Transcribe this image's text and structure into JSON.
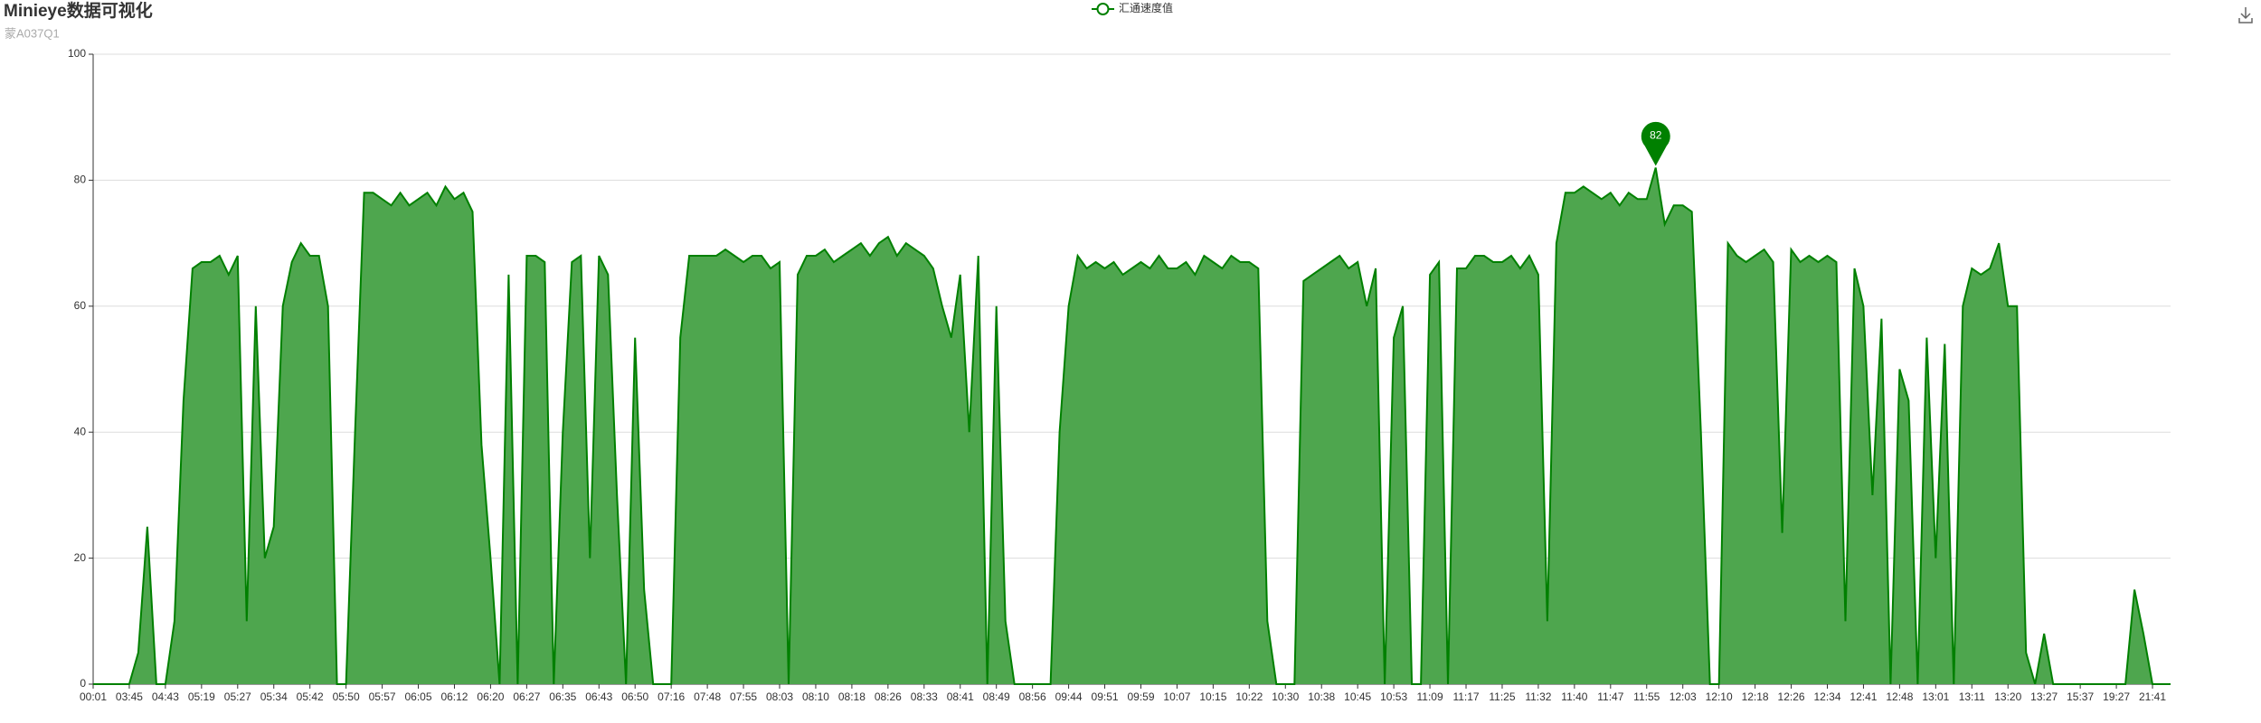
{
  "chart_data": {
    "type": "area",
    "title": "Minieye数据可视化",
    "subtitle": "蒙A037Q1",
    "categories": [
      "00:01",
      null,
      null,
      null,
      "03:45",
      null,
      null,
      null,
      "04:43",
      null,
      null,
      null,
      "05:19",
      null,
      null,
      null,
      "05:27",
      null,
      null,
      null,
      "05:34",
      null,
      null,
      null,
      "05:42",
      null,
      null,
      null,
      "05:50",
      null,
      null,
      null,
      "05:57",
      null,
      null,
      null,
      "06:05",
      null,
      null,
      null,
      "06:12",
      null,
      null,
      null,
      "06:20",
      null,
      null,
      null,
      "06:27",
      null,
      null,
      null,
      "06:35",
      null,
      null,
      null,
      "06:43",
      null,
      null,
      null,
      "06:50",
      null,
      null,
      null,
      "07:16",
      null,
      null,
      null,
      "07:48",
      null,
      null,
      null,
      "07:55",
      null,
      null,
      null,
      "08:03",
      null,
      null,
      null,
      "08:10",
      null,
      null,
      null,
      "08:18",
      null,
      null,
      null,
      "08:26",
      null,
      null,
      null,
      "08:33",
      null,
      null,
      null,
      "08:41",
      null,
      null,
      null,
      "08:49",
      null,
      null,
      null,
      "08:56",
      null,
      null,
      null,
      "09:44",
      null,
      null,
      null,
      "09:51",
      null,
      null,
      null,
      "09:59",
      null,
      null,
      null,
      "10:07",
      null,
      null,
      null,
      "10:15",
      null,
      null,
      null,
      "10:22",
      null,
      null,
      null,
      "10:30",
      null,
      null,
      null,
      "10:38",
      null,
      null,
      null,
      "10:45",
      null,
      null,
      null,
      "10:53",
      null,
      null,
      null,
      "11:09",
      null,
      null,
      null,
      "11:17",
      null,
      null,
      null,
      "11:25",
      null,
      null,
      null,
      "11:32",
      null,
      null,
      null,
      "11:40",
      null,
      null,
      null,
      "11:47",
      null,
      null,
      null,
      "11:55",
      null,
      null,
      null,
      "12:03",
      null,
      null,
      null,
      "12:10",
      null,
      null,
      null,
      "12:18",
      null,
      null,
      null,
      "12:26",
      null,
      null,
      null,
      "12:34",
      null,
      null,
      null,
      "12:41",
      null,
      null,
      null,
      "12:48",
      null,
      null,
      null,
      "13:01",
      null,
      null,
      null,
      "13:11",
      null,
      null,
      null,
      "13:20",
      null,
      null,
      null,
      "13:27",
      null,
      null,
      null,
      "15:37",
      null,
      null,
      null,
      "19:27",
      null,
      null,
      null,
      "21:41",
      null,
      null
    ],
    "series": [
      {
        "name": "汇通速度值",
        "color": "#008000",
        "fill": "#4ea64e",
        "values": [
          0,
          0,
          0,
          0,
          0,
          5,
          25,
          0,
          0,
          10,
          45,
          66,
          67,
          67,
          68,
          65,
          68,
          10,
          60,
          20,
          25,
          60,
          67,
          70,
          68,
          68,
          60,
          0,
          0,
          40,
          78,
          78,
          77,
          76,
          78,
          76,
          77,
          78,
          76,
          79,
          77,
          78,
          75,
          38,
          20,
          0,
          65,
          0,
          68,
          68,
          67,
          0,
          40,
          67,
          68,
          20,
          68,
          65,
          30,
          0,
          55,
          15,
          0,
          0,
          0,
          55,
          68,
          68,
          68,
          68,
          69,
          68,
          67,
          68,
          68,
          66,
          67,
          0,
          65,
          68,
          68,
          69,
          67,
          68,
          69,
          70,
          68,
          70,
          71,
          68,
          70,
          69,
          68,
          66,
          60,
          55,
          65,
          40,
          68,
          0,
          60,
          10,
          0,
          0,
          0,
          0,
          0,
          40,
          60,
          68,
          66,
          67,
          66,
          67,
          65,
          66,
          67,
          66,
          68,
          66,
          66,
          67,
          65,
          68,
          67,
          66,
          68,
          67,
          67,
          66,
          10,
          0,
          0,
          0,
          64,
          65,
          66,
          67,
          68,
          66,
          67,
          60,
          66,
          0,
          55,
          60,
          0,
          0,
          65,
          67,
          0,
          66,
          66,
          68,
          68,
          67,
          67,
          68,
          66,
          68,
          65,
          10,
          70,
          78,
          78,
          79,
          78,
          77,
          78,
          76,
          78,
          77,
          77,
          82,
          73,
          76,
          76,
          75,
          40,
          0,
          0,
          70,
          68,
          67,
          68,
          69,
          67,
          24,
          69,
          67,
          68,
          67,
          68,
          67,
          10,
          66,
          60,
          30,
          58,
          0,
          50,
          45,
          0,
          55,
          20,
          54,
          0,
          60,
          66,
          65,
          66,
          70,
          60,
          60,
          5,
          0,
          8,
          0,
          0,
          0,
          0,
          0,
          0,
          0,
          0,
          0,
          15,
          8,
          0,
          0,
          0
        ]
      }
    ],
    "ylim": [
      0,
      100
    ],
    "yticks": [
      0,
      20,
      40,
      60,
      80,
      100
    ],
    "grid": true,
    "legend": "top"
  }
}
